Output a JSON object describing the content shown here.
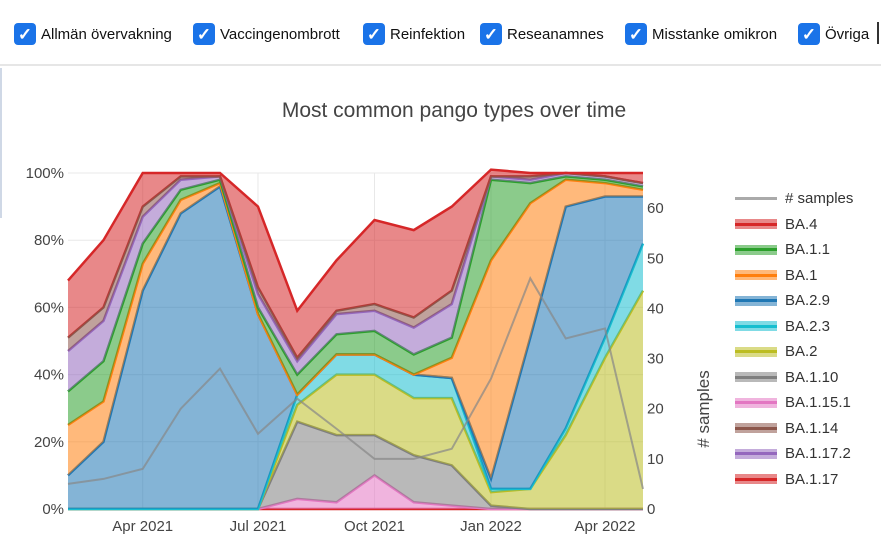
{
  "filters": [
    {
      "label": "Allmän övervakning",
      "checked": true
    },
    {
      "label": "Vaccingenombrott",
      "checked": true
    },
    {
      "label": "Reinfektion",
      "checked": true
    },
    {
      "label": "Reseanamnes",
      "checked": true
    },
    {
      "label": "Misstanke omikron",
      "checked": true
    },
    {
      "label": "Övriga",
      "checked": true
    }
  ],
  "checkbox_color": "#1a73e8",
  "chart_data": {
    "type": "area",
    "title": "Most common pango types over time",
    "xlabel": "",
    "ylabel": "",
    "y2label": "# samples",
    "x_ticks": [
      "Apr 2021",
      "Jul 2021",
      "Oct 2021",
      "Jan 2022",
      "Apr 2022"
    ],
    "y_ticks": [
      "0%",
      "20%",
      "40%",
      "60%",
      "80%",
      "100%"
    ],
    "y2_ticks": [
      "0",
      "10",
      "20",
      "30",
      "40",
      "50",
      "60"
    ],
    "ylim": [
      0,
      100
    ],
    "y2lim": [
      0,
      67
    ],
    "stacked": true,
    "grid": true,
    "legend_position": "right",
    "x": [
      "2021-02-01",
      "2021-03-01",
      "2021-04-01",
      "2021-05-01",
      "2021-06-01",
      "2021-07-01",
      "2021-08-01",
      "2021-09-01",
      "2021-10-01",
      "2021-11-01",
      "2021-12-01",
      "2022-01-01",
      "2022-02-01",
      "2022-03-01",
      "2022-04-01",
      "2022-05-01"
    ],
    "stack_series": [
      {
        "name": "BA.1.17",
        "color": "#d62728",
        "values": [
          0,
          0,
          0,
          0,
          0,
          0,
          0,
          0,
          0,
          0,
          0,
          0,
          0,
          0,
          0,
          0
        ]
      },
      {
        "name": "BA.1.15.1",
        "color": "#e377c2",
        "values": [
          0,
          0,
          0,
          0,
          0,
          0,
          3,
          2,
          10,
          2,
          1,
          0,
          0,
          0,
          0,
          0
        ]
      },
      {
        "name": "BA.1.10",
        "color": "#7f7f7f",
        "values": [
          0,
          0,
          0,
          0,
          0,
          0,
          23,
          20,
          12,
          14,
          12,
          1,
          0,
          0,
          0,
          0
        ]
      },
      {
        "name": "BA.2",
        "color": "#bcbd22",
        "values": [
          0,
          0,
          0,
          0,
          0,
          0,
          5,
          18,
          18,
          17,
          20,
          4,
          6,
          22,
          45,
          65
        ]
      },
      {
        "name": "BA.2.3",
        "color": "#17becf",
        "values": [
          0,
          0,
          0,
          0,
          0,
          0,
          3,
          6,
          6,
          7,
          6,
          1,
          0,
          2,
          6,
          14
        ]
      },
      {
        "name": "BA.2.9",
        "color": "#1f77b4",
        "values": [
          10,
          20,
          65,
          88,
          96,
          58,
          0,
          0,
          0,
          0,
          0,
          3,
          45,
          66,
          42,
          14
        ]
      },
      {
        "name": "BA.1",
        "color": "#ff7f0e",
        "values": [
          15,
          12,
          8,
          4,
          1,
          0,
          0,
          0,
          0,
          0,
          6,
          65,
          40,
          8,
          4,
          2
        ]
      },
      {
        "name": "BA.1.1",
        "color": "#2ca02c",
        "values": [
          10,
          12,
          6,
          3,
          1,
          2,
          6,
          6,
          7,
          6,
          6,
          24,
          6,
          1,
          1,
          1
        ]
      },
      {
        "name": "BA.1.17.2",
        "color": "#9467bd",
        "values": [
          12,
          12,
          8,
          3,
          1,
          4,
          4,
          6,
          6,
          8,
          10,
          1,
          1,
          1,
          1,
          1
        ]
      },
      {
        "name": "BA.1.14",
        "color": "#8c564b",
        "values": [
          4,
          4,
          3,
          1,
          0,
          2,
          1,
          1,
          2,
          3,
          4,
          0,
          1,
          0,
          0,
          0
        ]
      },
      {
        "name": "BA.4",
        "color": "#d62728",
        "values": [
          17,
          20,
          10,
          1,
          1,
          24,
          14,
          15,
          25,
          26,
          25,
          2,
          1,
          0,
          1,
          3
        ]
      }
    ],
    "samples_series": {
      "name": "# samples",
      "color": "#aaaaaa",
      "values": [
        5,
        6,
        8,
        20,
        28,
        15,
        22,
        16,
        10,
        10,
        12,
        26,
        46,
        34,
        36,
        4
      ]
    },
    "legend": [
      "# samples",
      "BA.4",
      "BA.1.1",
      "BA.1",
      "BA.2.9",
      "BA.2.3",
      "BA.2",
      "BA.1.10",
      "BA.1.15.1",
      "BA.1.14",
      "BA.1.17.2",
      "BA.1.17"
    ]
  }
}
